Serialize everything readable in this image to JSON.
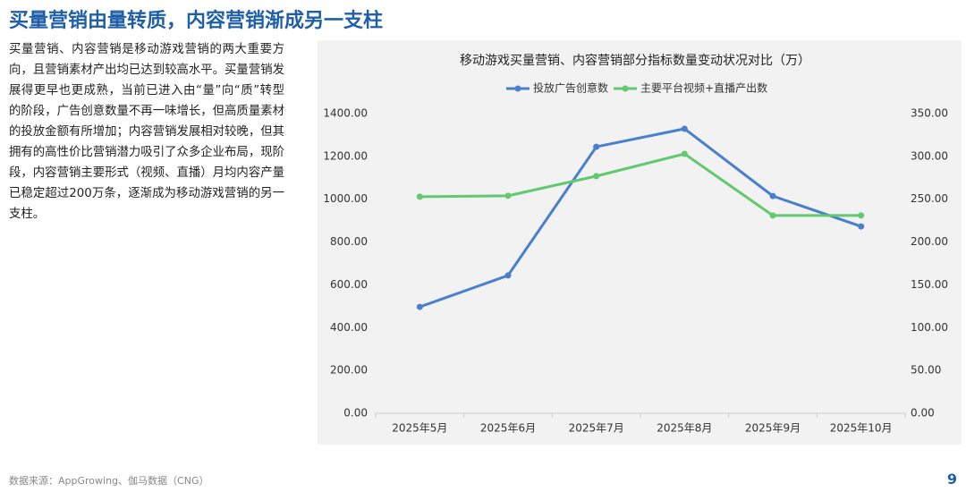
{
  "header": {
    "title": "买量营销由量转质，内容营销渐成另一支柱"
  },
  "body": {
    "text": "买量营销、内容营销是移动游戏营销的两大重要方向，且营销素材产出均已达到较高水平。买量营销发展得更早也更成熟，当前已进入由“量”向“质”转型的阶段，广告创意数量不再一味增长，但高质量素材的投放金额有所增加；内容营销发展相对较晚，但其拥有的高性价比营销潜力吸引了众多企业布局，现阶段，内容营销主要形式（视频、直播）月均内容产量已稳定超过200万条，逐渐成为移动游戏营销的另一支柱。"
  },
  "chart_data": {
    "type": "line",
    "title": "移动游戏买量营销、内容营销部分指标数量变动状况对比（万）",
    "categories": [
      "2025年5月",
      "2025年6月",
      "2025年7月",
      "2025年8月",
      "2025年9月",
      "2025年10月"
    ],
    "series": [
      {
        "name": "投放广告创意数",
        "color": "#4a7fcb",
        "values": [
          497,
          644,
          1245,
          1329,
          1015,
          873
        ]
      },
      {
        "name": "主要平台视频+直播产出数",
        "color": "#62c96f",
        "axis": "y2",
        "values": [
          253,
          254,
          277,
          303,
          231,
          231
        ]
      }
    ],
    "ylim": [
      0,
      1400
    ],
    "yticks": [
      {
        "value": 0,
        "label": "0.00"
      },
      {
        "value": 200,
        "label": "200.00"
      },
      {
        "value": 400,
        "label": "400.00"
      },
      {
        "value": 600,
        "label": "600.00"
      },
      {
        "value": 800,
        "label": "800.00"
      },
      {
        "value": 1000,
        "label": "1000.00"
      },
      {
        "value": 1200,
        "label": "1200.00"
      },
      {
        "value": 1400,
        "label": "1400.00"
      }
    ],
    "y2lim": [
      0,
      350
    ],
    "y2ticks": [
      {
        "value": 0,
        "label": "0.00"
      },
      {
        "value": 50,
        "label": "50.00"
      },
      {
        "value": 100,
        "label": "100.00"
      },
      {
        "value": 150,
        "label": "150.00"
      },
      {
        "value": 200,
        "label": "200.00"
      },
      {
        "value": 250,
        "label": "250.00"
      },
      {
        "value": 300,
        "label": "300.00"
      },
      {
        "value": 350,
        "label": "350.00"
      }
    ],
    "grid": false
  },
  "footer": {
    "source": "数据来源：AppGrowing、伽马数据（CNG）",
    "page": "9"
  }
}
